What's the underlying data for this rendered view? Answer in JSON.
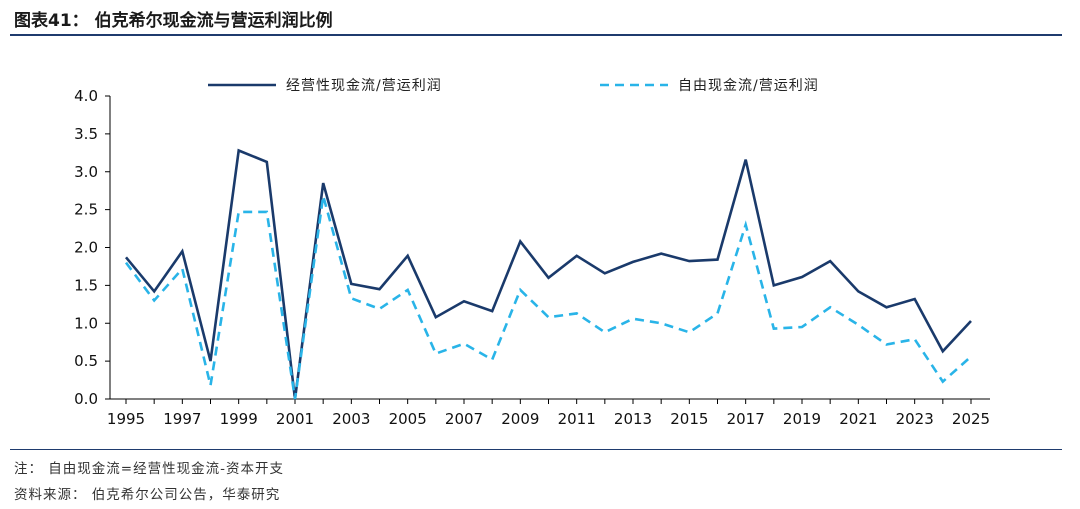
{
  "header": {
    "title": "图表41：  伯克希尔现金流与营运利润比例"
  },
  "footer": {
    "note": "注：  自由现金流=经营性现金流-资本开支",
    "source": "资料来源：  伯克希尔公司公告，华泰研究"
  },
  "colors": {
    "series1": "#1a3a6b",
    "series2": "#29b4e8",
    "axis": "#000000",
    "rule": "#1f3b6e"
  },
  "chart_data": {
    "type": "line",
    "x": [
      1995,
      1996,
      1997,
      1998,
      1999,
      2000,
      2001,
      2002,
      2003,
      2004,
      2005,
      2006,
      2007,
      2008,
      2009,
      2010,
      2011,
      2012,
      2013,
      2014,
      2015,
      2016,
      2017,
      2018,
      2019,
      2020,
      2021,
      2022,
      2023,
      2024,
      2025
    ],
    "x_ticks": [
      "1995",
      "1997",
      "1999",
      "2001",
      "2003",
      "2005",
      "2007",
      "2009",
      "2011",
      "2013",
      "2015",
      "2017",
      "2019",
      "2021",
      "2023",
      "2025"
    ],
    "y_ticks": [
      "0.0",
      "0.5",
      "1.0",
      "1.5",
      "2.0",
      "2.5",
      "3.0",
      "3.5",
      "4.0"
    ],
    "ylim": [
      0,
      4
    ],
    "legend_position": "top",
    "series": [
      {
        "name": "经营性现金流/营运利润",
        "style": "solid",
        "values": [
          1.87,
          1.42,
          1.95,
          0.5,
          3.28,
          3.13,
          0,
          2.85,
          1.52,
          1.45,
          1.89,
          1.08,
          1.29,
          1.16,
          2.08,
          1.6,
          1.89,
          1.66,
          1.81,
          1.92,
          1.82,
          1.84,
          3.16,
          1.5,
          1.61,
          1.82,
          1.42,
          1.21,
          1.32,
          0.63,
          1.03
        ]
      },
      {
        "name": "自由现金流/营运利润",
        "style": "dashed",
        "values": [
          1.8,
          1.3,
          1.72,
          0.18,
          2.47,
          2.47,
          0,
          2.68,
          1.33,
          1.19,
          1.44,
          0.6,
          0.73,
          0.52,
          1.44,
          1.08,
          1.13,
          0.88,
          1.06,
          1.0,
          0.88,
          1.13,
          2.3,
          0.93,
          0.95,
          1.21,
          0.98,
          0.72,
          0.79,
          0.23,
          0.56
        ]
      }
    ]
  }
}
